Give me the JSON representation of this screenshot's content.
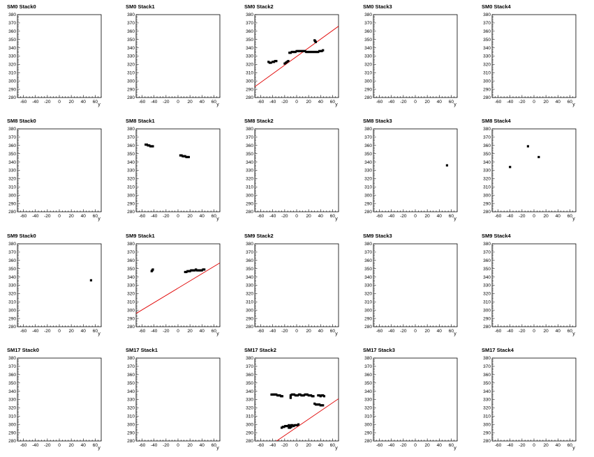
{
  "chart_data": {
    "type": "scatter",
    "grid": false,
    "xlabel": "y",
    "xlim": [
      -70,
      70
    ],
    "ylim": [
      280,
      380
    ],
    "xticks": [
      -60,
      -40,
      -20,
      0,
      20,
      40,
      60
    ],
    "yticks": [
      280,
      290,
      300,
      310,
      320,
      330,
      340,
      350,
      360,
      370,
      380
    ],
    "colors": {
      "points": "#000000",
      "fit_line": "#e00000",
      "frame": "#000000"
    },
    "panels": [
      {
        "title": "SM0 Stack0",
        "points": [],
        "fit": null
      },
      {
        "title": "SM0 Stack1",
        "points": [],
        "fit": null
      },
      {
        "title": "SM0 Stack2",
        "points": [
          [
            -47,
            323
          ],
          [
            -45,
            322
          ],
          [
            -43,
            322
          ],
          [
            -40,
            323
          ],
          [
            -38,
            323
          ],
          [
            -36,
            324
          ],
          [
            -34,
            324
          ],
          [
            -20,
            321
          ],
          [
            -18,
            322
          ],
          [
            -16,
            323
          ],
          [
            -14,
            324
          ],
          [
            -12,
            334
          ],
          [
            -10,
            334
          ],
          [
            -8,
            335
          ],
          [
            -6,
            335
          ],
          [
            -4,
            335
          ],
          [
            -2,
            335
          ],
          [
            0,
            336
          ],
          [
            2,
            336
          ],
          [
            4,
            336
          ],
          [
            6,
            336
          ],
          [
            8,
            336
          ],
          [
            10,
            336
          ],
          [
            12,
            336
          ],
          [
            14,
            336
          ],
          [
            16,
            335
          ],
          [
            18,
            335
          ],
          [
            20,
            335
          ],
          [
            22,
            335
          ],
          [
            24,
            335
          ],
          [
            26,
            335
          ],
          [
            28,
            335
          ],
          [
            30,
            335
          ],
          [
            32,
            335
          ],
          [
            34,
            335
          ],
          [
            36,
            335
          ],
          [
            38,
            336
          ],
          [
            40,
            336
          ],
          [
            42,
            336
          ],
          [
            44,
            337
          ],
          [
            30,
            349
          ],
          [
            31,
            348
          ],
          [
            32,
            347
          ]
        ],
        "fit": [
          [
            -70,
            293
          ],
          [
            70,
            366
          ]
        ]
      },
      {
        "title": "SM0 Stack3",
        "points": [],
        "fit": null
      },
      {
        "title": "SM0 Stack4",
        "points": [],
        "fit": null
      },
      {
        "title": "SM8 Stack0",
        "points": [],
        "fit": null
      },
      {
        "title": "SM8 Stack1",
        "points": [
          [
            -54,
            361
          ],
          [
            -52,
            361
          ],
          [
            -50,
            360
          ],
          [
            -48,
            360
          ],
          [
            -46,
            359
          ],
          [
            -44,
            359
          ],
          [
            -42,
            359
          ],
          [
            4,
            348
          ],
          [
            6,
            348
          ],
          [
            8,
            347
          ],
          [
            10,
            347
          ],
          [
            12,
            347
          ],
          [
            14,
            346
          ],
          [
            16,
            346
          ],
          [
            18,
            346
          ]
        ],
        "fit": null
      },
      {
        "title": "SM8 Stack2",
        "points": [],
        "fit": null
      },
      {
        "title": "SM8 Stack3",
        "points": [
          [
            53,
            336
          ]
        ],
        "fit": null
      },
      {
        "title": "SM8 Stack4",
        "points": [
          [
            -40,
            334
          ],
          [
            -10,
            359
          ],
          [
            8,
            346
          ]
        ],
        "fit": null
      },
      {
        "title": "SM9 Stack0",
        "points": [
          [
            53,
            336
          ]
        ],
        "fit": null
      },
      {
        "title": "SM9 Stack1",
        "points": [
          [
            -44,
            347
          ],
          [
            -43,
            348
          ],
          [
            -42,
            349
          ],
          [
            12,
            346
          ],
          [
            14,
            346
          ],
          [
            16,
            347
          ],
          [
            18,
            347
          ],
          [
            20,
            347
          ],
          [
            22,
            348
          ],
          [
            24,
            348
          ],
          [
            26,
            348
          ],
          [
            28,
            348
          ],
          [
            30,
            349
          ],
          [
            32,
            348
          ],
          [
            34,
            348
          ],
          [
            36,
            348
          ],
          [
            38,
            348
          ],
          [
            40,
            348
          ],
          [
            42,
            349
          ],
          [
            44,
            349
          ]
        ],
        "fit": [
          [
            -70,
            296
          ],
          [
            70,
            357
          ]
        ]
      },
      {
        "title": "SM9 Stack2",
        "points": [],
        "fit": null
      },
      {
        "title": "SM9 Stack3",
        "points": [],
        "fit": null
      },
      {
        "title": "SM9 Stack4",
        "points": [],
        "fit": null
      },
      {
        "title": "SM17 Stack0",
        "points": [],
        "fit": null
      },
      {
        "title": "SM17 Stack1",
        "points": [],
        "fit": null
      },
      {
        "title": "SM17 Stack2",
        "points": [
          [
            -42,
            336
          ],
          [
            -40,
            336
          ],
          [
            -38,
            336
          ],
          [
            -36,
            336
          ],
          [
            -34,
            336
          ],
          [
            -32,
            335
          ],
          [
            -30,
            335
          ],
          [
            -28,
            335
          ],
          [
            -26,
            334
          ],
          [
            -24,
            334
          ],
          [
            -10,
            335
          ],
          [
            -8,
            336
          ],
          [
            -6,
            336
          ],
          [
            -4,
            336
          ],
          [
            -2,
            335
          ],
          [
            0,
            335
          ],
          [
            2,
            335
          ],
          [
            4,
            336
          ],
          [
            6,
            336
          ],
          [
            8,
            335
          ],
          [
            10,
            335
          ],
          [
            12,
            335
          ],
          [
            14,
            336
          ],
          [
            16,
            336
          ],
          [
            18,
            336
          ],
          [
            20,
            335
          ],
          [
            22,
            335
          ],
          [
            24,
            335
          ],
          [
            26,
            334
          ],
          [
            28,
            334
          ],
          [
            36,
            335
          ],
          [
            38,
            335
          ],
          [
            40,
            334
          ],
          [
            42,
            335
          ],
          [
            44,
            335
          ],
          [
            46,
            334
          ],
          [
            -10,
            332
          ],
          [
            -10,
            333
          ],
          [
            30,
            325
          ],
          [
            32,
            324
          ],
          [
            34,
            324
          ],
          [
            36,
            324
          ],
          [
            38,
            324
          ],
          [
            40,
            323
          ],
          [
            42,
            323
          ],
          [
            44,
            323
          ],
          [
            -25,
            296
          ],
          [
            -23,
            297
          ],
          [
            -21,
            297
          ],
          [
            -19,
            298
          ],
          [
            -17,
            298
          ],
          [
            -15,
            298
          ],
          [
            -13,
            299
          ],
          [
            -11,
            298
          ],
          [
            -9,
            299
          ],
          [
            -7,
            299
          ],
          [
            -5,
            298
          ],
          [
            -3,
            299
          ],
          [
            -1,
            299
          ],
          [
            1,
            299
          ],
          [
            3,
            300
          ],
          [
            -13,
            296
          ],
          [
            -11,
            296
          ],
          [
            -9,
            297
          ]
        ],
        "fit": [
          [
            -70,
            262
          ],
          [
            70,
            331
          ]
        ]
      },
      {
        "title": "SM17 Stack3",
        "points": [],
        "fit": null
      },
      {
        "title": "SM17 Stack4",
        "points": [],
        "fit": null
      }
    ]
  }
}
